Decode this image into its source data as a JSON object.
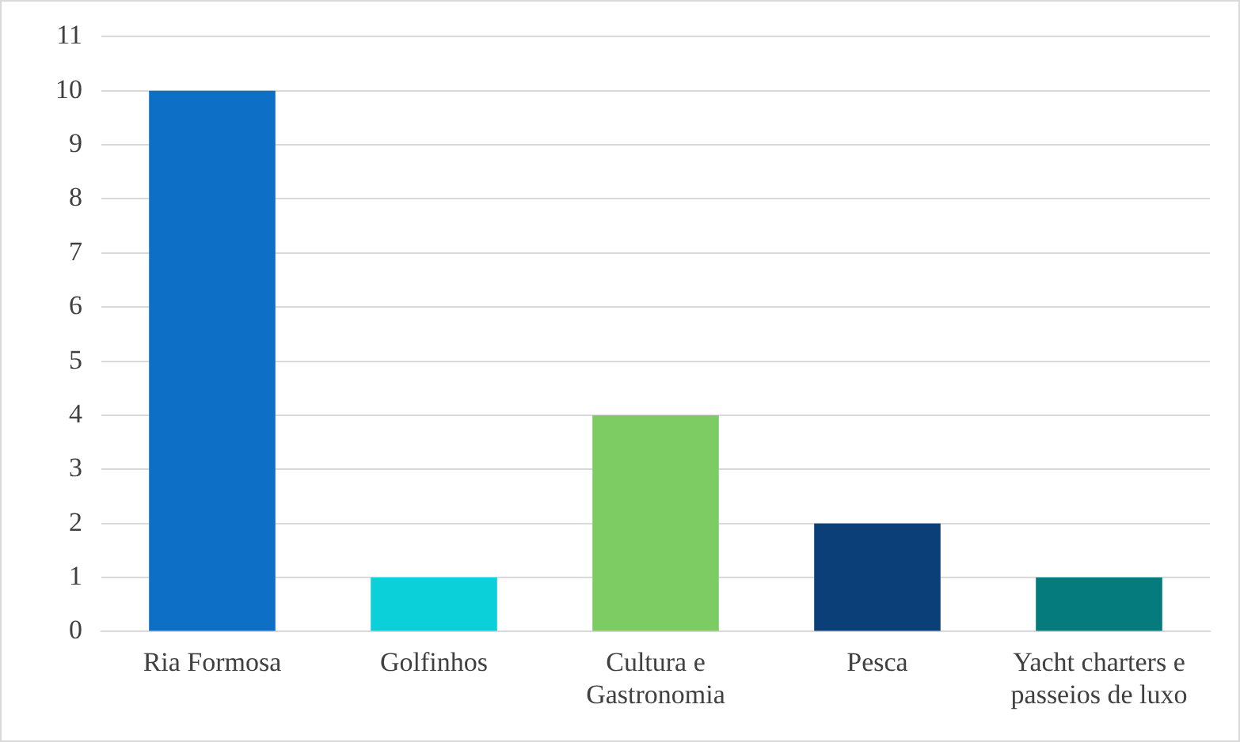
{
  "chart_data": {
    "type": "bar",
    "categories": [
      "Ria Formosa",
      "Golfinhos",
      "Cultura e Gastronomia",
      "Pesca",
      "Yacht charters e passeios de luxo"
    ],
    "values": [
      10,
      1,
      4,
      2,
      1
    ],
    "colors": [
      "#0e6fc6",
      "#0bd0d9",
      "#7ccc63",
      "#0b3f78",
      "#067b7e"
    ],
    "ylim": [
      0,
      11
    ],
    "yticks": [
      0,
      1,
      2,
      3,
      4,
      5,
      6,
      7,
      8,
      9,
      10,
      11
    ],
    "grid": "y",
    "legend": false
  }
}
